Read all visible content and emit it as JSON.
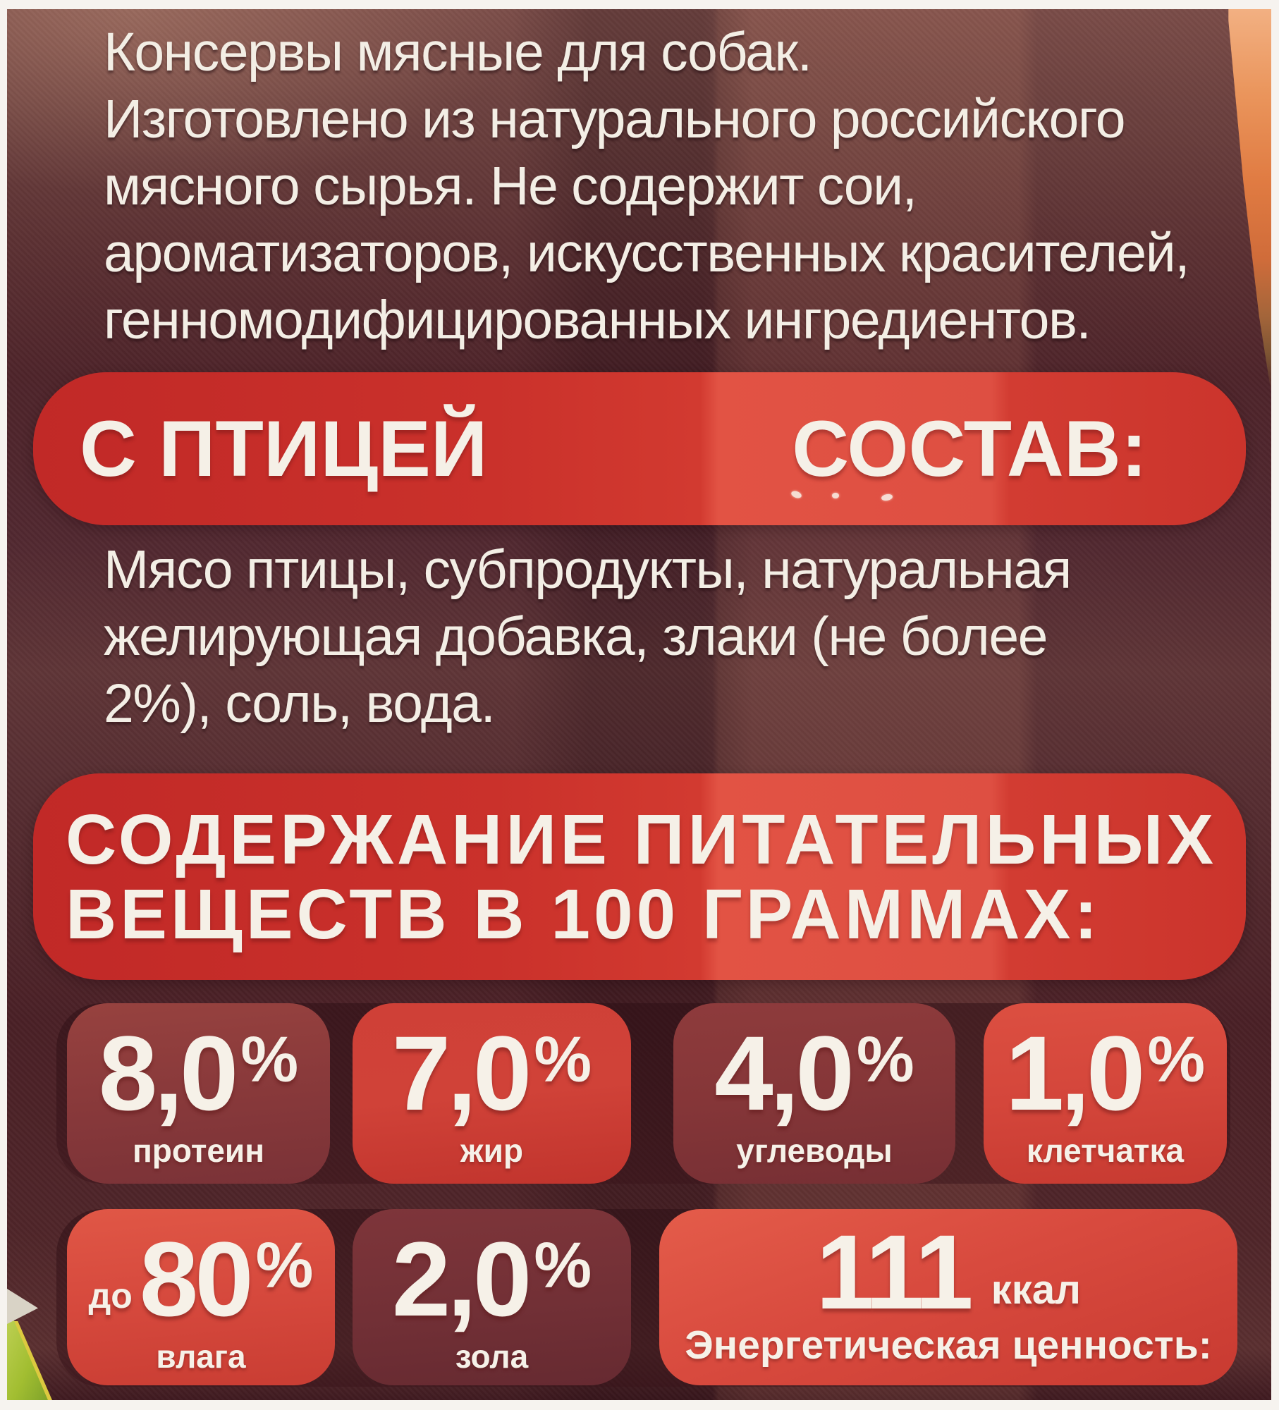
{
  "label": {
    "intro_lines": [
      "Консервы мясные для собак.",
      "Изготовлено из натурального российского",
      "мясного сырья. Не содержит сои,",
      "ароматизаторов, искусственных красителей,",
      "генномодифицированных ингредиентов."
    ],
    "flavor_banner": {
      "flavor": "С ПТИЦЕЙ",
      "composition_heading": "СОСТАВ:"
    },
    "composition_lines": [
      "Мясо птицы, субпродукты, натуральная",
      "желирующая добавка, злаки (не более",
      "2%), соль, вода."
    ],
    "nutrition_banner_lines": [
      "СОДЕРЖАНИЕ ПИТАТЕЛЬНЫХ",
      "ВЕЩЕСТВ В 100 ГРАММАХ:"
    ],
    "nutrients": [
      {
        "value": "8,0",
        "unit": "%",
        "label": "протеин"
      },
      {
        "value": "7,0",
        "unit": "%",
        "label": "жир"
      },
      {
        "value": "4,0",
        "unit": "%",
        "label": "углеводы"
      },
      {
        "value": "1,0",
        "unit": "%",
        "label": "клетчатка"
      },
      {
        "prefix": "до",
        "value": "80",
        "unit": "%",
        "label": "влага"
      },
      {
        "value": "2,0",
        "unit": "%",
        "label": "зола"
      },
      {
        "value": "111",
        "unit": "ккал",
        "label": "Энергетическая ценность:"
      }
    ],
    "colors": {
      "banner_red": "#d0382f",
      "banner_highlight": "#e25344",
      "bright_box_red": "#d6493d",
      "muted_box_red": "#853639",
      "background_maroon": "#54292e",
      "text_white": "#f3eee5",
      "artwork_orange": "#e07b42",
      "artwork_green": "#a2be31",
      "photo_border_white": "#f6f3ef"
    }
  }
}
